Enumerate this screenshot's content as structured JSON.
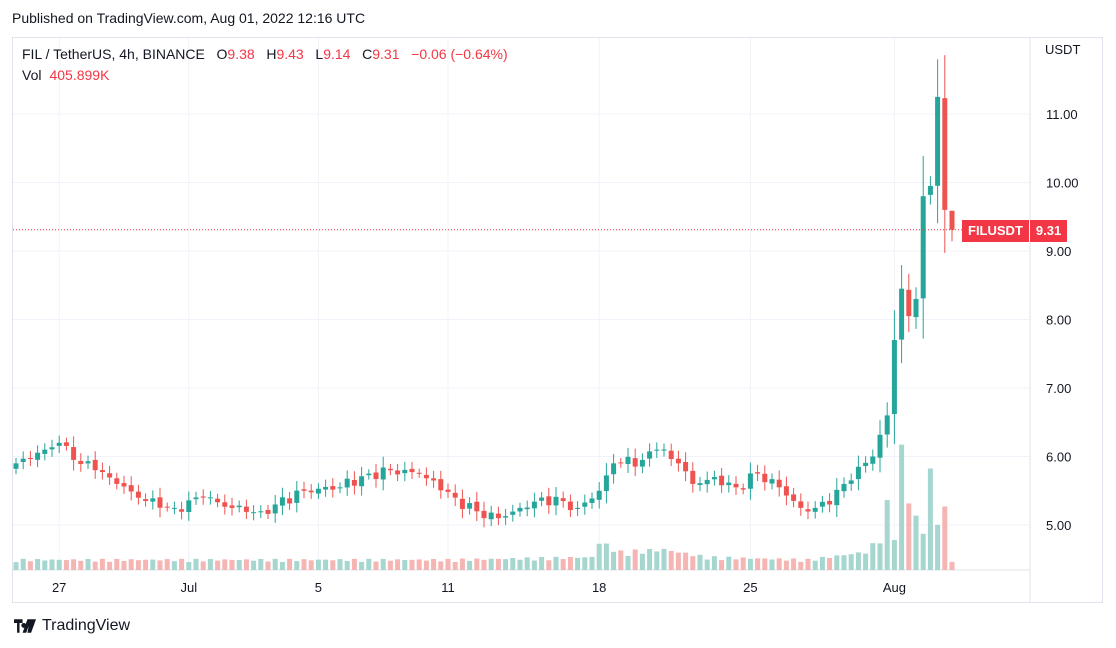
{
  "published": "Published on TradingView.com, Aug 01, 2022 12:16 UTC",
  "legend": {
    "symbol": "FIL / TetherUS, 4h, BINANCE",
    "o_label": "O",
    "o": "9.38",
    "h_label": "H",
    "h": "9.43",
    "l_label": "L",
    "l": "9.14",
    "c_label": "C",
    "c": "9.31",
    "change": "−0.06 (−0.64%)",
    "vol_label": "Vol",
    "vol": "405.899K"
  },
  "axis": {
    "currency": "USDT"
  },
  "price_tag": {
    "symbol": "FILUSDT",
    "value": "9.31"
  },
  "brand": {
    "name": "TradingView",
    "icon": "tradingview-logo"
  },
  "colors": {
    "up": "#26a69a",
    "down": "#ef5350",
    "up_vol": "#a5d6d0",
    "down_vol": "#f4b5b3",
    "grid": "#f0f3fa"
  },
  "chart_data": {
    "type": "candlestick",
    "symbol": "FILUSDT",
    "timeframe": "4h",
    "y_ticks": [
      5.0,
      6.0,
      7.0,
      8.0,
      9.0,
      10.0,
      11.0
    ],
    "y_tick_labels": [
      "5.00",
      "6.00",
      "7.00",
      "8.00",
      "9.00",
      "10.00",
      "11.00"
    ],
    "ylim": [
      4.45,
      11.85
    ],
    "x_ticks": [
      {
        "label": "27",
        "index": 6
      },
      {
        "label": "Jul",
        "index": 24
      },
      {
        "label": "5",
        "index": 42
      },
      {
        "label": "11",
        "index": 60
      },
      {
        "label": "18",
        "index": 81
      },
      {
        "label": "25",
        "index": 102
      },
      {
        "label": "Aug",
        "index": 122
      }
    ],
    "last_price": 9.31,
    "close_anchors": [
      [
        0,
        5.9
      ],
      [
        4,
        6.1
      ],
      [
        6,
        6.2
      ],
      [
        8,
        5.95
      ],
      [
        11,
        5.8
      ],
      [
        14,
        5.6
      ],
      [
        18,
        5.35
      ],
      [
        22,
        5.25
      ],
      [
        26,
        5.4
      ],
      [
        30,
        5.25
      ],
      [
        34,
        5.2
      ],
      [
        36,
        5.3
      ],
      [
        40,
        5.5
      ],
      [
        45,
        5.55
      ],
      [
        49,
        5.75
      ],
      [
        52,
        5.8
      ],
      [
        56,
        5.75
      ],
      [
        58,
        5.65
      ],
      [
        61,
        5.4
      ],
      [
        64,
        5.2
      ],
      [
        67,
        5.1
      ],
      [
        70,
        5.25
      ],
      [
        73,
        5.4
      ],
      [
        76,
        5.35
      ],
      [
        78,
        5.25
      ],
      [
        81,
        5.5
      ],
      [
        83,
        5.9
      ],
      [
        87,
        5.95
      ],
      [
        89,
        6.1
      ],
      [
        92,
        5.9
      ],
      [
        94,
        5.6
      ],
      [
        97,
        5.7
      ],
      [
        100,
        5.55
      ],
      [
        103,
        5.75
      ],
      [
        106,
        5.55
      ],
      [
        109,
        5.25
      ],
      [
        111,
        5.25
      ],
      [
        113,
        5.3
      ],
      [
        115,
        5.6
      ],
      [
        117,
        5.85
      ],
      [
        119,
        6.0
      ],
      [
        121,
        6.6
      ],
      [
        122,
        7.7
      ],
      [
        123,
        8.45
      ],
      [
        124,
        8.05
      ],
      [
        125,
        8.3
      ],
      [
        126,
        9.8
      ],
      [
        127,
        9.95
      ],
      [
        128,
        11.25
      ],
      [
        129,
        9.6
      ],
      [
        130,
        9.31
      ]
    ],
    "volume_anchors": [
      [
        0,
        0.08
      ],
      [
        20,
        0.08
      ],
      [
        40,
        0.08
      ],
      [
        60,
        0.08
      ],
      [
        80,
        0.1
      ],
      [
        81,
        0.22
      ],
      [
        84,
        0.14
      ],
      [
        90,
        0.16
      ],
      [
        96,
        0.1
      ],
      [
        110,
        0.08
      ],
      [
        118,
        0.14
      ],
      [
        120,
        0.25
      ],
      [
        121,
        0.5
      ],
      [
        122,
        0.3
      ],
      [
        123,
        0.9
      ],
      [
        124,
        0.6
      ],
      [
        125,
        0.4
      ],
      [
        126,
        0.3
      ],
      [
        127,
        0.78
      ],
      [
        128,
        0.35
      ],
      [
        129,
        0.52
      ],
      [
        130,
        0.06
      ]
    ]
  }
}
